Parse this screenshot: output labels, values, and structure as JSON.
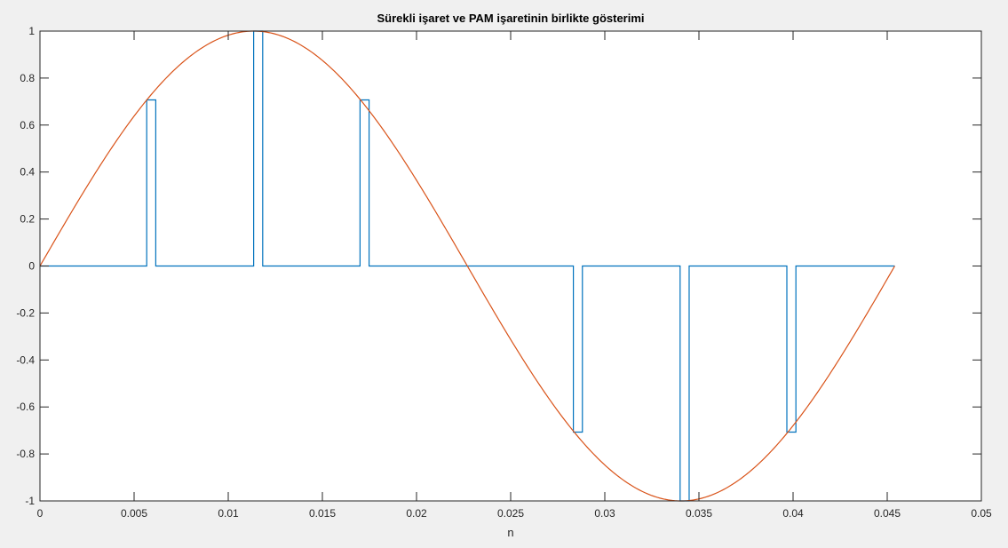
{
  "window": {
    "background_color": "#f0f0f0",
    "axes_background": "#ffffff"
  },
  "chart_data": {
    "type": "line",
    "title": "Sürekli işaret ve PAM işaretinin birlikte gösterimi",
    "xlabel": "n",
    "ylabel": "",
    "xlim": [
      0,
      0.05
    ],
    "ylim": [
      -1,
      1
    ],
    "xticks": [
      0,
      0.005,
      0.01,
      0.015,
      0.02,
      0.025,
      0.03,
      0.035,
      0.04,
      0.045,
      0.05
    ],
    "xtick_labels": [
      "0",
      "0.005",
      "0.01",
      "0.015",
      "0.02",
      "0.025",
      "0.03",
      "0.035",
      "0.04",
      "0.045",
      "0.05"
    ],
    "yticks": [
      -1,
      -0.8,
      -0.6,
      -0.4,
      -0.2,
      0,
      0.2,
      0.4,
      0.6,
      0.8,
      1
    ],
    "ytick_labels": [
      "-1",
      "-0.8",
      "-0.6",
      "-0.4",
      "-0.2",
      "0",
      "0.2",
      "0.4",
      "0.6",
      "0.8",
      "1"
    ],
    "grid": false,
    "legend": null,
    "series": [
      {
        "color": "#0072bd",
        "style": "step",
        "x": [
          0,
          0.00567,
          0.00567,
          0.00615,
          0.00615,
          0.01135,
          0.01135,
          0.01183,
          0.01183,
          0.017,
          0.017,
          0.01748,
          0.01748,
          0.02833,
          0.02833,
          0.02881,
          0.02881,
          0.034,
          0.034,
          0.03448,
          0.03448,
          0.03967,
          0.03967,
          0.04015,
          0.04015,
          0.0454
        ],
        "y": [
          0,
          0,
          0.707,
          0.707,
          0,
          0,
          1,
          1,
          0,
          0,
          0.707,
          0.707,
          0,
          0,
          -0.707,
          -0.707,
          0,
          0,
          -1,
          -1,
          0,
          0,
          -0.707,
          -0.707,
          0,
          0
        ]
      },
      {
        "color": "#d95319",
        "style": "line",
        "function": "sin",
        "x_start": 0,
        "x_end": 0.0454,
        "period": 0.0454,
        "amplitude": 1
      }
    ]
  }
}
